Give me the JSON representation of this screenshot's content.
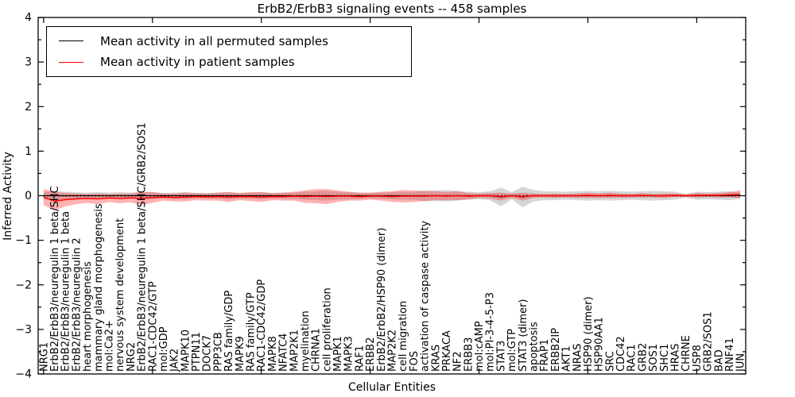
{
  "title": "ErbB2/ErbB3 signaling events -- 458 samples",
  "axes": {
    "xlabel": "Cellular Entities",
    "ylabel": "Inferred Activity",
    "ytick_labels": [
      "4",
      "3",
      "2",
      "1",
      "0",
      "−1",
      "−2",
      "−3",
      "−4"
    ],
    "ytick_values": [
      4,
      3,
      2,
      1,
      0,
      -1,
      -2,
      -3,
      -4
    ]
  },
  "legend": {
    "items": [
      {
        "label": "Mean activity in all permuted samples",
        "color": "#000000"
      },
      {
        "label": "Mean activity in patient samples",
        "color": "#ff0000"
      }
    ]
  },
  "chart_data": {
    "type": "line",
    "title": "ErbB2/ErbB3 signaling events -- 458 samples",
    "xlabel": "Cellular Entities",
    "ylabel": "Inferred Activity",
    "ylim": [
      -4,
      4
    ],
    "xlim": [
      -0.5,
      64.5
    ],
    "grid": false,
    "legend_position": "upper left",
    "categories": [
      "NRG1",
      "ErbB2/ErbB3/neuregulin 1 beta/SHC",
      "ErbB2/ErbB3/neuregulin 1 beta",
      "ErbB2/ErbB3/neuregulin 2",
      "heart morphogenesis",
      "mammary gland morphogenesis",
      "mol:Ca2+",
      "nervous system development",
      "NRG2",
      "ErbB2/ErbB3/neuregulin 1 beta/SHC/GRB2/SOS1",
      "RAC1-CDC42/GTP",
      "mol:GDP",
      "JAK2",
      "MAPK10",
      "PTPN11",
      "DOCK7",
      "PPP3CB",
      "RAS family/GDP",
      "MAPK9",
      "RAS family/GTP",
      "RAC1-CDC42/GDP",
      "MAPK8",
      "NFATC4",
      "MAP2K1",
      "myelination",
      "CHRNA1",
      "cell proliferation",
      "MAPK1",
      "MAPK3",
      "RAF1",
      "ERBB2",
      "ErbB2/ErbB2/HSP90 (dimer)",
      "MAP2K2",
      "cell migration",
      "FOS",
      "activation of caspase activity",
      "KRAS",
      "PRKACA",
      "NF2",
      "ERBB3",
      "mol:cAMP",
      "mol:PI-3-4-5-P3",
      "STAT3",
      "mol:GTP",
      "STAT3 (dimer)",
      "apoptosis",
      "FRAP1",
      "ERBB2IP",
      "AKT1",
      "NRAS",
      "HSP90 (dimer)",
      "HSP90AA1",
      "SRC",
      "CDC42",
      "RAC1",
      "GRB2",
      "SOS1",
      "SHC1",
      "HRAS",
      "CHRNE",
      "USP8",
      "GRB2/SOS1",
      "BAD",
      "RNF41",
      "JUN"
    ],
    "series": [
      {
        "name": "Mean activity in all permuted samples",
        "color": "#000000",
        "band_color": "rgba(0,0,0,0.16)",
        "values": [
          0,
          0,
          0,
          0,
          0,
          0,
          0,
          0,
          0,
          0,
          0,
          0,
          0,
          0,
          0,
          0,
          0,
          0,
          0,
          0,
          0,
          0,
          0,
          0,
          0,
          0,
          0,
          0,
          0,
          0,
          0,
          0,
          0,
          0,
          0,
          0,
          0,
          0,
          0,
          0,
          0,
          0,
          -0.03,
          0,
          -0.03,
          0,
          0,
          0,
          0,
          0,
          0,
          0,
          0,
          0,
          0,
          0,
          0,
          0,
          0,
          0,
          0,
          0,
          0,
          0,
          0
        ],
        "band_halfwidth": [
          0.08,
          0.1,
          0.09,
          0.08,
          0.07,
          0.08,
          0.07,
          0.08,
          0.07,
          0.08,
          0.08,
          0.06,
          0.07,
          0.08,
          0.06,
          0.06,
          0.07,
          0.08,
          0.06,
          0.07,
          0.08,
          0.06,
          0.07,
          0.07,
          0.09,
          0.1,
          0.11,
          0.09,
          0.08,
          0.07,
          0.06,
          0.07,
          0.08,
          0.09,
          0.09,
          0.12,
          0.12,
          0.13,
          0.11,
          0.09,
          0.08,
          0.1,
          0.21,
          0.08,
          0.23,
          0.13,
          0.1,
          0.1,
          0.09,
          0.1,
          0.11,
          0.1,
          0.11,
          0.1,
          0.09,
          0.1,
          0.11,
          0.1,
          0.09,
          0.04,
          0.09,
          0.08,
          0.09,
          0.1,
          0.07
        ]
      },
      {
        "name": "Mean activity in patient samples",
        "color": "#ff0000",
        "band_color": "rgba(255,0,0,0.30)",
        "values": [
          -0.03,
          -0.12,
          -0.09,
          -0.07,
          -0.06,
          -0.07,
          -0.05,
          -0.06,
          -0.05,
          -0.06,
          -0.04,
          -0.03,
          -0.04,
          -0.03,
          -0.02,
          -0.03,
          -0.02,
          -0.03,
          -0.02,
          -0.02,
          -0.03,
          -0.02,
          -0.02,
          -0.01,
          -0.02,
          -0.01,
          -0.02,
          -0.01,
          -0.01,
          -0.02,
          -0.01,
          -0.01,
          -0.02,
          -0.01,
          -0.01,
          -0.01,
          0,
          -0.01,
          0,
          -0.01,
          0,
          0,
          -0.02,
          0,
          -0.02,
          0,
          0,
          0,
          0,
          0,
          0.01,
          0,
          0.01,
          0,
          0,
          0.01,
          0,
          0,
          0.01,
          0,
          0.01,
          0.01,
          0.01,
          0.02,
          0.03
        ],
        "band_halfwidth": [
          0.18,
          0.21,
          0.15,
          0.12,
          0.1,
          0.12,
          0.09,
          0.11,
          0.1,
          0.15,
          0.12,
          0.08,
          0.09,
          0.1,
          0.08,
          0.08,
          0.09,
          0.11,
          0.08,
          0.1,
          0.11,
          0.08,
          0.09,
          0.1,
          0.14,
          0.16,
          0.17,
          0.13,
          0.1,
          0.09,
          0.08,
          0.1,
          0.12,
          0.14,
          0.13,
          0.11,
          0.1,
          0.09,
          0.1,
          0.07,
          0.05,
          0.06,
          0.09,
          0.05,
          0.09,
          0.05,
          0.04,
          0.05,
          0.04,
          0.05,
          0.06,
          0.05,
          0.06,
          0.05,
          0.04,
          0.05,
          0.04,
          0.05,
          0.04,
          0.03,
          0.05,
          0.04,
          0.05,
          0.06,
          0.09
        ]
      }
    ]
  }
}
